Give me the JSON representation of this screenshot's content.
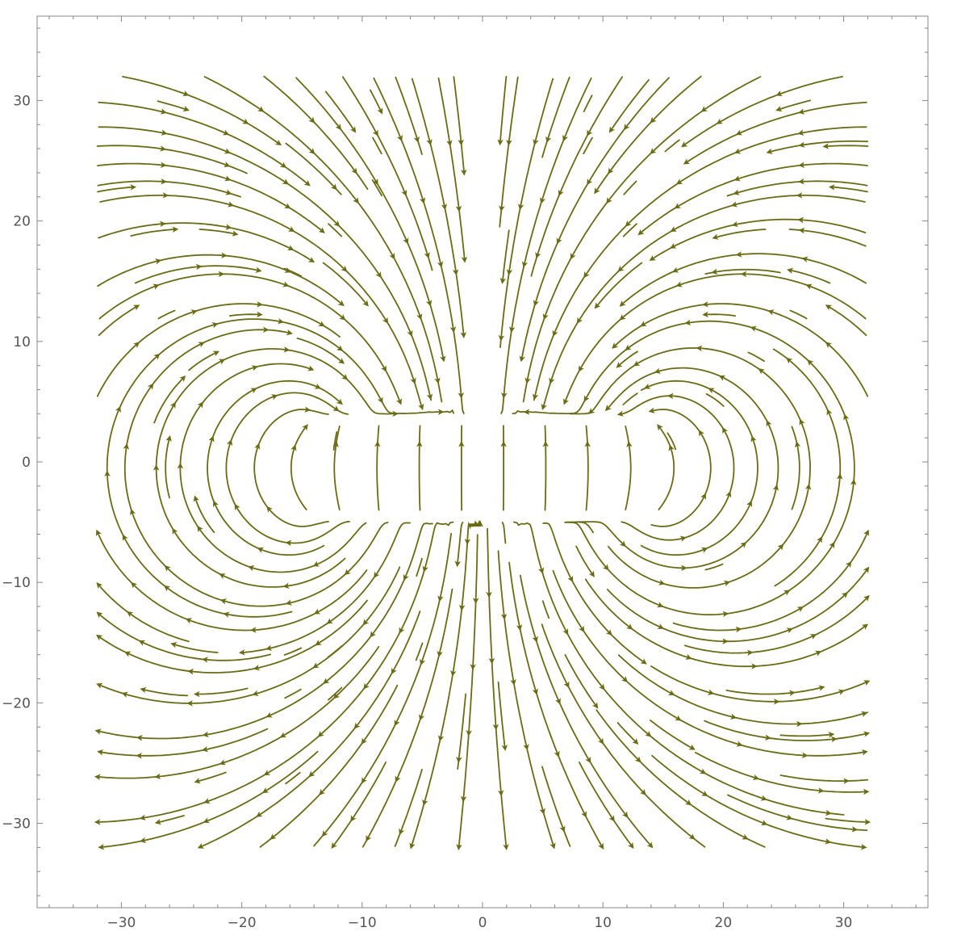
{
  "chart_data": {
    "type": "streamplot",
    "title": "",
    "xlabel": "",
    "ylabel": "",
    "xlim": [
      -37,
      37
    ],
    "ylim": [
      -37,
      37
    ],
    "x_ticks": [
      {
        "value": -30,
        "label": "−30"
      },
      {
        "value": -20,
        "label": "−20"
      },
      {
        "value": -10,
        "label": "−10"
      },
      {
        "value": 0,
        "label": "0"
      },
      {
        "value": 10,
        "label": "10"
      },
      {
        "value": 20,
        "label": "20"
      },
      {
        "value": 30,
        "label": "30"
      }
    ],
    "y_ticks": [
      {
        "value": 30,
        "label": "30"
      },
      {
        "value": 20,
        "label": "20"
      },
      {
        "value": 10,
        "label": "10"
      },
      {
        "value": 0,
        "label": "0"
      },
      {
        "value": -10,
        "label": "−10"
      },
      {
        "value": -20,
        "label": "−20"
      },
      {
        "value": -30,
        "label": "−30"
      }
    ],
    "grid": false,
    "stream_color": "#6b6b14",
    "stream_region": {
      "x": [
        -32,
        32
      ],
      "y": [
        -32,
        32
      ]
    },
    "field": {
      "description": "electric field of a parallel-plate capacitor",
      "plates": [
        {
          "name": "positive",
          "charge": 1,
          "y": -4.5,
          "x_range": [
            -15,
            15
          ]
        },
        {
          "name": "negative",
          "charge": -1,
          "y": 3.5,
          "x_range": [
            -15,
            15
          ]
        }
      ]
    }
  }
}
